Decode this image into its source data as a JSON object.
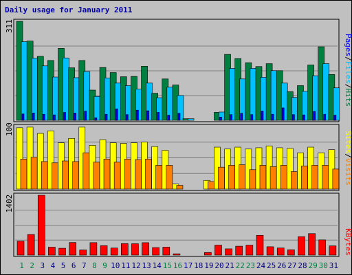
{
  "title": "Daily usage for January 2011",
  "colors": {
    "background": "#c0c0c0",
    "hits": "#008040",
    "files": "#00c0ff",
    "pages": "#0000ff",
    "visits": "#ff8000",
    "sites": "#ffff00",
    "kbytes": "#ff0000",
    "title": "#0000aa",
    "grid": "#808080",
    "weekday": "#000080",
    "weekend": "#008040"
  },
  "chart_data": [
    {
      "type": "bar",
      "panel": "top",
      "ymax_label": "311",
      "ylim": [
        0,
        311
      ],
      "categories": [
        "1",
        "2",
        "3",
        "4",
        "5",
        "6",
        "7",
        "8",
        "9",
        "10",
        "11",
        "12",
        "13",
        "14",
        "15",
        "16",
        "17",
        "18",
        "19",
        "20",
        "21",
        "22",
        "23",
        "24",
        "25",
        "26",
        "27",
        "28",
        "29",
        "30",
        "31"
      ],
      "series": [
        {
          "name": "Hits",
          "color_key": "hits",
          "values": [
            311,
            249,
            201,
            188,
            226,
            165,
            188,
            95,
            166,
            150,
            137,
            138,
            170,
            85,
            130,
            111,
            5,
            0,
            0,
            25,
            207,
            194,
            181,
            169,
            178,
            156,
            90,
            109,
            174,
            231,
            144
          ]
        },
        {
          "name": "Files",
          "color_key": "files",
          "values": [
            247,
            195,
            171,
            136,
            196,
            134,
            153,
            75,
            133,
            117,
            109,
            98,
            117,
            71,
            104,
            78,
            5,
            0,
            0,
            26,
            163,
            130,
            163,
            135,
            156,
            117,
            72,
            91,
            140,
            178,
            102
          ]
        },
        {
          "name": "Pages",
          "color_key": "pages",
          "values": [
            20,
            23,
            19,
            17,
            25,
            23,
            29,
            8,
            19,
            36,
            18,
            32,
            30,
            25,
            16,
            22,
            0,
            0,
            0,
            10,
            18,
            22,
            18,
            29,
            19,
            39,
            18,
            17,
            28,
            19,
            16
          ]
        }
      ],
      "legend": [
        "Pages",
        "/",
        "Files",
        "/",
        "Hits"
      ],
      "legend_position": "right, vertical"
    },
    {
      "type": "bar",
      "panel": "middle",
      "ymax_label": "100",
      "ylim": [
        0,
        100
      ],
      "categories": [
        "1",
        "2",
        "3",
        "4",
        "5",
        "6",
        "7",
        "8",
        "9",
        "10",
        "11",
        "12",
        "13",
        "14",
        "15",
        "16",
        "17",
        "18",
        "19",
        "20",
        "21",
        "22",
        "23",
        "24",
        "25",
        "26",
        "27",
        "28",
        "29",
        "30",
        "31"
      ],
      "series": [
        {
          "name": "Sites",
          "color_key": "sites",
          "values": [
            98,
            99,
            89,
            93,
            74,
            81,
            99,
            70,
            79,
            74,
            73,
            74,
            75,
            68,
            62,
            8,
            0,
            0,
            14,
            67,
            64,
            67,
            64,
            66,
            69,
            66,
            65,
            58,
            67,
            58,
            63
          ]
        },
        {
          "name": "Visits",
          "color_key": "visits",
          "values": [
            48,
            51,
            44,
            42,
            45,
            44,
            58,
            43,
            48,
            43,
            48,
            47,
            48,
            38,
            38,
            6,
            0,
            0,
            12,
            35,
            38,
            39,
            31,
            38,
            36,
            38,
            28,
            37,
            38,
            38,
            32
          ]
        }
      ],
      "legend": [
        "Sites",
        "/",
        "Visits"
      ],
      "legend_position": "right, vertical"
    },
    {
      "type": "bar",
      "panel": "bottom",
      "ymax_label": "1402",
      "ylim": [
        0,
        1402
      ],
      "categories": [
        "1",
        "2",
        "3",
        "4",
        "5",
        "6",
        "7",
        "8",
        "9",
        "10",
        "11",
        "12",
        "13",
        "14",
        "15",
        "16",
        "17",
        "18",
        "19",
        "20",
        "21",
        "22",
        "23",
        "24",
        "25",
        "26",
        "27",
        "28",
        "29",
        "30",
        "31"
      ],
      "series": [
        {
          "name": "KBytes",
          "color_key": "kbytes",
          "values": [
            325,
            483,
            1402,
            185,
            160,
            295,
            120,
            292,
            221,
            165,
            268,
            266,
            291,
            176,
            186,
            30,
            0,
            0,
            60,
            233,
            146,
            208,
            233,
            463,
            195,
            166,
            125,
            432,
            503,
            356,
            216
          ]
        }
      ],
      "legend": [
        "KBytes"
      ],
      "legend_position": "right, vertical"
    }
  ],
  "weekend_days": [
    "1",
    "2",
    "8",
    "9",
    "15",
    "16",
    "22",
    "23",
    "29",
    "30"
  ]
}
